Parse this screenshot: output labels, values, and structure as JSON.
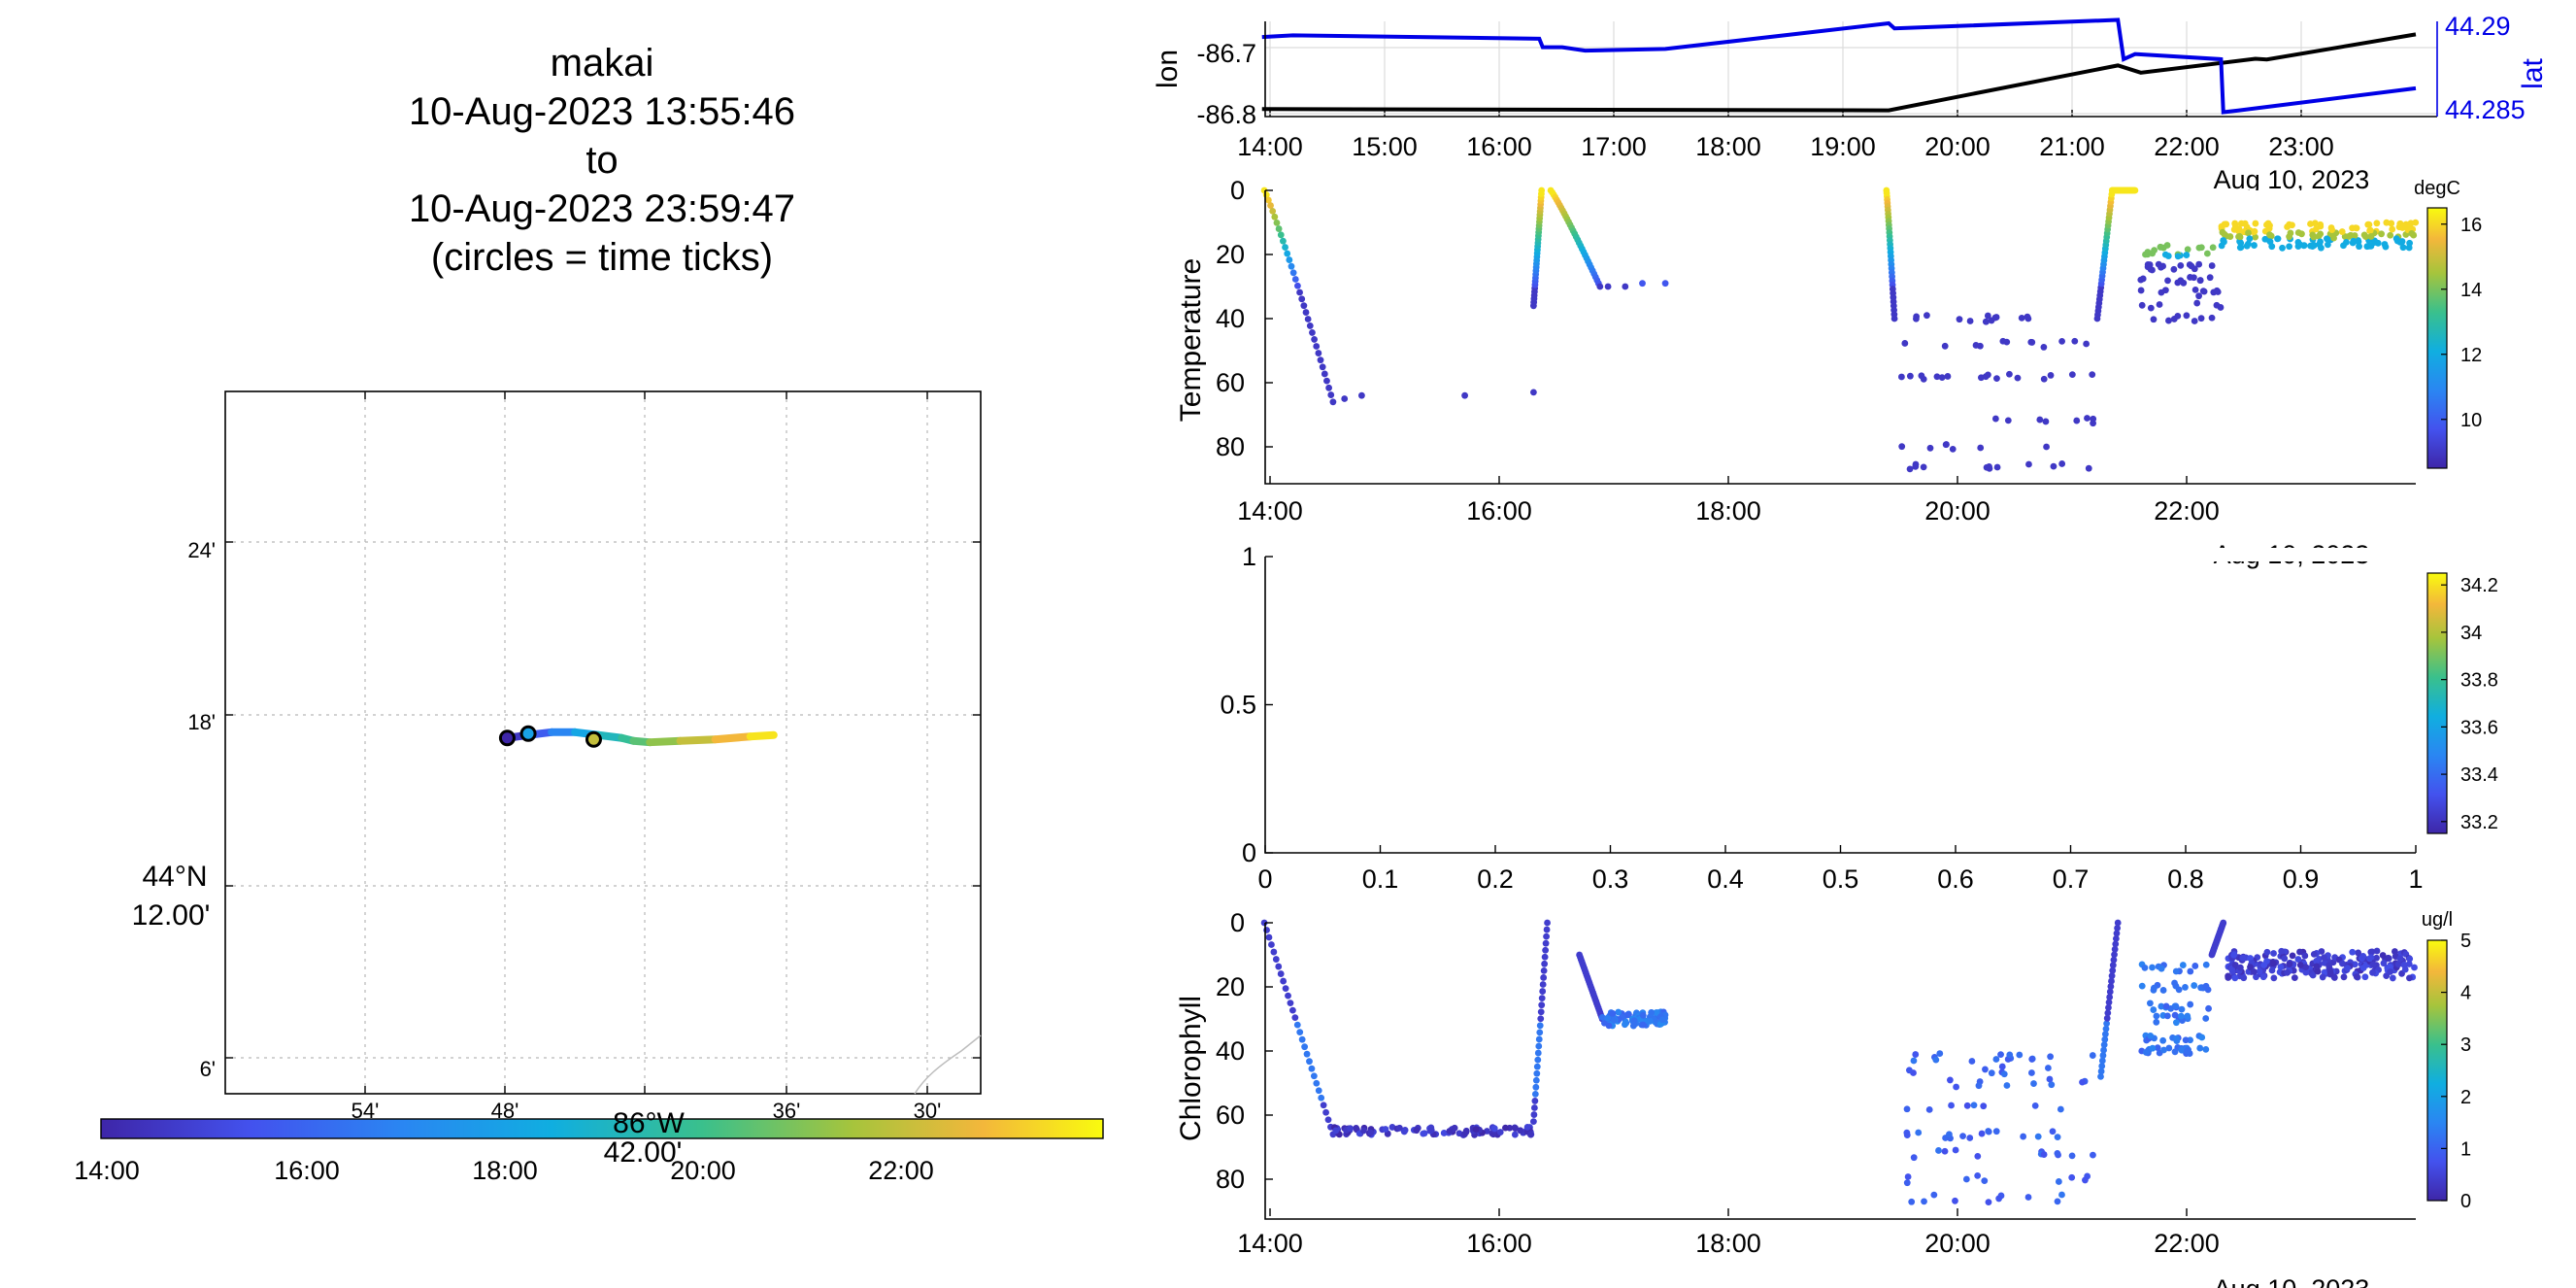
{
  "header": {
    "title_lines": [
      "makai",
      "10-Aug-2023 13:55:46",
      "to",
      "10-Aug-2023 23:59:47",
      "(circles = time ticks)"
    ]
  },
  "chart_data": [
    {
      "id": "track_map",
      "type": "line",
      "xticks": [
        "54'",
        "48'",
        "36'",
        "30'"
      ],
      "xlabel_lines": [
        "86°W",
        "42.00'"
      ],
      "yticks": [
        "24'",
        "18'",
        "6'"
      ],
      "ylabel_lines": [
        "44°N",
        "12.00'"
      ],
      "grid": true,
      "colorbar_ticks": [
        "14:00",
        "16:00",
        "18:00",
        "20:00",
        "22:00"
      ],
      "track": {
        "lon_min": [
          -47.9,
          -47.0,
          -46.0,
          -45.0,
          -44.0,
          -43.0,
          -42.5,
          -41.8,
          -40.5,
          -39.0,
          -37.5,
          -36.5
        ],
        "lat_min": [
          17.2,
          17.3,
          17.4,
          17.4,
          17.3,
          17.2,
          17.1,
          17.05,
          17.1,
          17.15,
          17.25,
          17.3
        ],
        "hours": [
          14.0,
          15.2,
          16.4,
          17.6,
          18.8,
          19.5,
          20.1,
          20.8,
          21.6,
          22.4,
          23.2,
          24.0
        ]
      },
      "time_tick_circles": [
        {
          "lon_min": -47.9,
          "lat_min": 17.2,
          "hour": 14.0
        },
        {
          "lon_min": -47.0,
          "lat_min": 17.35,
          "hour": 18.0
        },
        {
          "lon_min": -44.2,
          "lat_min": 17.15,
          "hour": 22.0
        }
      ]
    },
    {
      "id": "lon_lat",
      "type": "line",
      "ylabel": "lon",
      "ylabel_right": "lat",
      "yticks": [
        "-86.7",
        "-86.8"
      ],
      "yticks_right": [
        "44.29",
        "44.285"
      ],
      "xticks": [
        "14:00",
        "15:00",
        "16:00",
        "17:00",
        "18:00",
        "19:00",
        "20:00",
        "21:00",
        "22:00",
        "23:00"
      ],
      "date_label": "Aug 10, 2023",
      "grid": true,
      "series": [
        {
          "name": "lon",
          "color": "#000000",
          "x": [
            13.93,
            19.4,
            21.4,
            21.6,
            22.6,
            22.7,
            24.0
          ],
          "y": [
            -86.793,
            -86.795,
            -86.727,
            -86.738,
            -86.717,
            -86.718,
            -86.68
          ]
        },
        {
          "name": "lat",
          "color": "#0000e6",
          "x": [
            13.93,
            14.2,
            16.35,
            16.38,
            16.55,
            16.75,
            17.45,
            19.4,
            19.45,
            21.4,
            21.45,
            21.55,
            22.3,
            22.32,
            22.45,
            24.0
          ],
          "y": [
            44.2892,
            44.2893,
            44.2891,
            44.2886,
            44.2886,
            44.2884,
            44.2885,
            44.29,
            44.2897,
            44.2902,
            44.2879,
            44.2882,
            44.2879,
            44.2848,
            44.2849,
            44.2862
          ]
        }
      ]
    },
    {
      "id": "temperature",
      "type": "scatter",
      "ylabel": "Temperature",
      "yticks": [
        "0",
        "20",
        "40",
        "60",
        "80"
      ],
      "xticks": [
        "14:00",
        "16:00",
        "18:00",
        "20:00",
        "22:00"
      ],
      "date_label": "Aug 10, 2023",
      "colorbar_unit": "degC",
      "colorbar_ticks": [
        "16",
        "14",
        "12",
        "10"
      ],
      "colorbar_range": [
        8.5,
        16.5
      ],
      "profiles": [
        {
          "t0": 13.95,
          "t1": 14.55,
          "top": 0,
          "bottom": 66,
          "dir": "down",
          "tail": [
            [
              14.65,
              65
            ],
            [
              14.8,
              64
            ],
            [
              15.7,
              64
            ],
            [
              16.3,
              63
            ]
          ]
        },
        {
          "t0": 16.3,
          "t1": 16.37,
          "top": 36,
          "bottom": 0,
          "dir": "up"
        },
        {
          "t0": 16.45,
          "t1": 16.88,
          "top": 0,
          "bottom": 30,
          "dir": "down",
          "tail": [
            [
              16.95,
              30
            ],
            [
              17.1,
              30
            ],
            [
              17.25,
              29
            ],
            [
              17.45,
              29
            ]
          ]
        },
        {
          "t0": 19.38,
          "t1": 19.45,
          "top": 0,
          "bottom": 40,
          "dir": "down"
        },
        {
          "t0": 21.22,
          "t1": 21.35,
          "top": 40,
          "bottom": 0,
          "dir": "up"
        },
        {
          "t0": 21.35,
          "t1": 21.55,
          "top": 0,
          "bottom": 0,
          "dir": "surface"
        }
      ],
      "bands": [
        {
          "t0": 19.5,
          "t1": 21.2,
          "depths": [
            40,
            48,
            58,
            72,
            80,
            86
          ],
          "temp": 9
        },
        {
          "t0": 21.6,
          "t1": 22.3,
          "depths": [
            18,
            20,
            24,
            28,
            32,
            36,
            40
          ],
          "temp": 9.5
        },
        {
          "t0": 22.3,
          "t1": 24.0,
          "depths": [
            11,
            13,
            15,
            17
          ],
          "temp": 14.5
        }
      ]
    },
    {
      "id": "salinity_empty",
      "type": "scatter",
      "yticks": [
        "0",
        "0.5",
        "1"
      ],
      "xticks": [
        "0",
        "0.1",
        "0.2",
        "0.3",
        "0.4",
        "0.5",
        "0.6",
        "0.7",
        "0.8",
        "0.9",
        "1"
      ],
      "colorbar_ticks": [
        "34.2",
        "34",
        "33.8",
        "33.6",
        "33.4",
        "33.2"
      ],
      "colorbar_range": [
        33.15,
        34.25
      ]
    },
    {
      "id": "chlorophyll",
      "type": "scatter",
      "ylabel": "Chlorophyll",
      "yticks": [
        "0",
        "20",
        "40",
        "60",
        "80"
      ],
      "xticks": [
        "14:00",
        "16:00",
        "18:00",
        "20:00",
        "22:00"
      ],
      "date_label": "Aug 10, 2023",
      "colorbar_unit": "ug/l",
      "colorbar_ticks": [
        "5",
        "4",
        "3",
        "2",
        "1",
        "0"
      ],
      "colorbar_range": [
        0,
        5
      ],
      "profiles": [
        {
          "t0": 13.95,
          "t1": 14.55,
          "top": 0,
          "bottom": 66,
          "dir": "down"
        },
        {
          "t0": 16.3,
          "t1": 16.42,
          "top": 62,
          "bottom": 0,
          "dir": "up"
        },
        {
          "t0": 16.7,
          "t1": 16.9,
          "top": 10,
          "bottom": 30,
          "dir": "down"
        },
        {
          "t0": 21.25,
          "t1": 21.4,
          "top": 48,
          "bottom": 0,
          "dir": "up"
        },
        {
          "t0": 22.22,
          "t1": 22.32,
          "top": 10,
          "bottom": 0,
          "dir": "up"
        }
      ],
      "bands": [
        {
          "t0": 14.55,
          "t1": 16.3,
          "depths": [
            65
          ],
          "chl": 0.3
        },
        {
          "t0": 16.9,
          "t1": 17.45,
          "depths": [
            29,
            31
          ],
          "chl": 1.3
        },
        {
          "t0": 19.55,
          "t1": 21.2,
          "depths": [
            42,
            46,
            50,
            58,
            66,
            72,
            80,
            86
          ],
          "chl": 1.0
        },
        {
          "t0": 21.6,
          "t1": 22.2,
          "depths": [
            14,
            20,
            26,
            30,
            36,
            40
          ],
          "chl": 1.2
        },
        {
          "t0": 22.35,
          "t1": 24.0,
          "depths": [
            10,
            12,
            14,
            16
          ],
          "chl": 0.4
        }
      ]
    }
  ]
}
